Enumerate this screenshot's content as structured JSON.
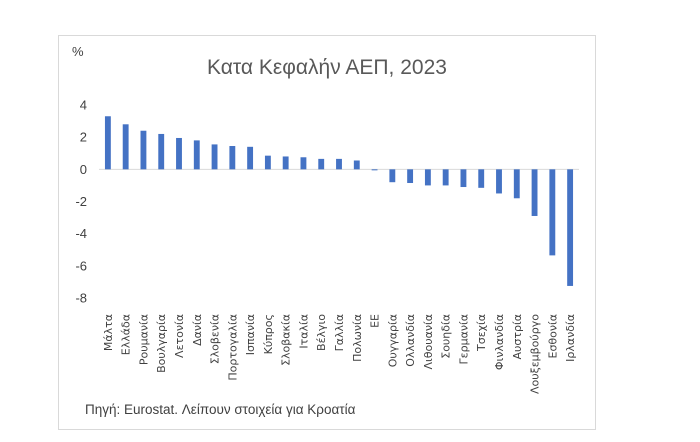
{
  "chart_data": {
    "type": "bar",
    "title": "Κατα Κεφαλήν ΑΕΠ, 2023",
    "unit_label": "%",
    "ylim": [
      -8,
      4
    ],
    "yticks": [
      4,
      2,
      0,
      -2,
      -4,
      -6,
      -8
    ],
    "grid": false,
    "legend": "none",
    "bar_color": "#4472c4",
    "categories": [
      "Μάλτα",
      "Ελλάδα",
      "Ρουμανία",
      "Βουλγαρία",
      "Λετονία",
      "Δανία",
      "Σλοβενία",
      "Πορτογαλία",
      "Ισπανία",
      "Κύπρος",
      "Σλοβακία",
      "Ιταλία",
      "Βέλγιο",
      "Γαλλία",
      "Πολωνία",
      "ΕΕ",
      "Ουγγαρία",
      "Ολλανδία",
      "Λιθουανία",
      "Σουηδία",
      "Γερμανία",
      "Τσεχία",
      "Φινλανδία",
      "Αυστρία",
      "Λουξεμβούργο",
      "Εσθονία",
      "Ιρλανδία"
    ],
    "values": [
      3.3,
      2.8,
      2.4,
      2.2,
      1.95,
      1.8,
      1.55,
      1.45,
      1.4,
      0.85,
      0.8,
      0.75,
      0.65,
      0.65,
      0.55,
      -0.05,
      -0.8,
      -0.85,
      -1.0,
      -1.0,
      -1.1,
      -1.15,
      -1.5,
      -1.8,
      -2.9,
      -5.35,
      -7.25
    ],
    "source": "Πηγή: Eurostat. Λείπουν στοιχεία για Κροατία"
  }
}
